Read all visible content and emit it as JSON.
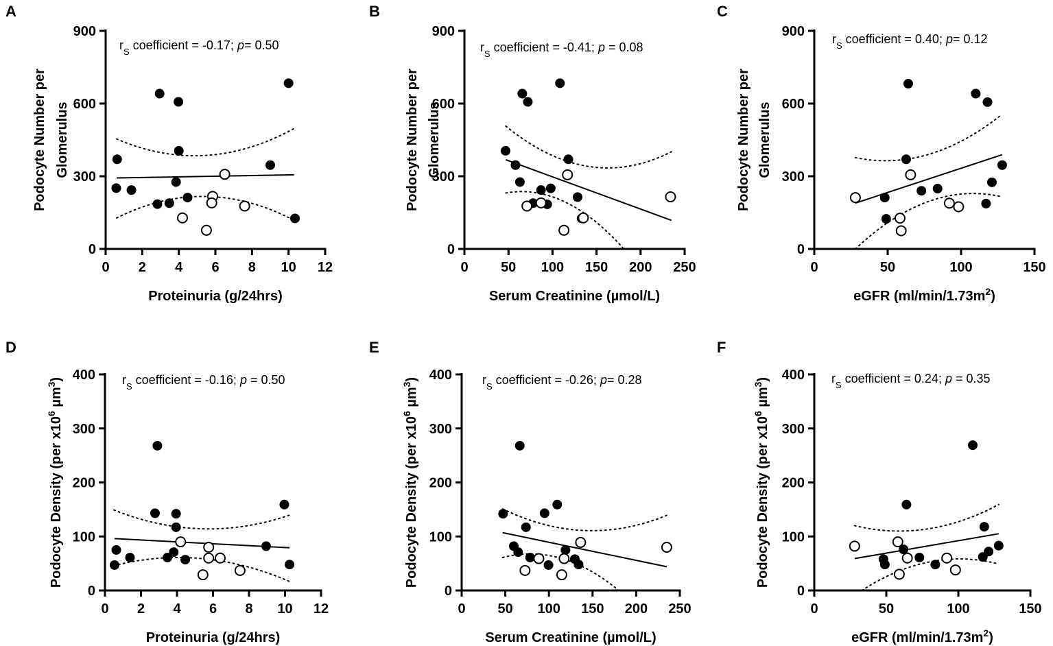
{
  "chart_data": [
    {
      "type": "scatter",
      "panel_label": "A",
      "xlabel": "Proteinuria (g/24hrs)",
      "ylabel_lines": [
        "Podocyte Number per",
        "Glomerulus"
      ],
      "xlim": [
        0,
        12
      ],
      "ylim": [
        0,
        900
      ],
      "xticks": [
        0,
        2,
        4,
        6,
        8,
        10,
        12
      ],
      "yticks": [
        0,
        300,
        600,
        900
      ],
      "annotation": {
        "r": "r",
        "sub": "S",
        "mid": " coefficient = -0.17; ",
        "p": "p",
        "end": "= 0.50"
      },
      "filled": [
        [
          0.63,
          370
        ],
        [
          0.58,
          251
        ],
        [
          1.41,
          243
        ],
        [
          2.95,
          641
        ],
        [
          3.98,
          607
        ],
        [
          4.0,
          405
        ],
        [
          3.85,
          276
        ],
        [
          2.83,
          185
        ],
        [
          3.48,
          189
        ],
        [
          4.48,
          212
        ],
        [
          9.0,
          346
        ],
        [
          10.0,
          684
        ],
        [
          10.35,
          126
        ]
      ],
      "open": [
        [
          6.51,
          308
        ],
        [
          5.85,
          217
        ],
        [
          5.8,
          190
        ],
        [
          7.6,
          177
        ],
        [
          4.2,
          128
        ],
        [
          5.51,
          77
        ]
      ],
      "fit": [
        [
          0.6,
          293
        ],
        [
          10.3,
          306
        ]
      ],
      "ci_upper": [
        [
          0.6,
          454
        ],
        [
          4.5,
          385
        ],
        [
          10.3,
          497
        ]
      ],
      "ci_lower": [
        [
          0.6,
          128
        ],
        [
          4.5,
          214
        ],
        [
          10.3,
          118
        ]
      ]
    },
    {
      "type": "scatter",
      "panel_label": "B",
      "xlabel": "Serum Creatinine (µmol/L)",
      "ylabel_lines": [
        "Podocyte Number per",
        "Glomerulus"
      ],
      "xlim": [
        0,
        250
      ],
      "ylim": [
        0,
        900
      ],
      "xticks": [
        0,
        50,
        100,
        150,
        200,
        250
      ],
      "yticks": [
        0,
        300,
        600,
        900
      ],
      "annotation": {
        "r": "r",
        "sub": "S",
        "mid": " coefficient = -0.41; ",
        "p": "p",
        "end": " = 0.08"
      },
      "filled": [
        [
          46.7,
          405
        ],
        [
          65.7,
          641
        ],
        [
          72,
          607
        ],
        [
          108.5,
          684
        ],
        [
          118,
          370
        ],
        [
          58,
          346
        ],
        [
          63,
          276
        ],
        [
          87,
          243
        ],
        [
          98,
          250
        ],
        [
          78,
          189
        ],
        [
          94,
          184
        ],
        [
          128.5,
          214
        ],
        [
          133,
          126
        ]
      ],
      "open": [
        [
          117,
          306
        ],
        [
          71,
          177
        ],
        [
          87,
          190
        ],
        [
          135,
          128
        ],
        [
          113,
          77
        ],
        [
          234,
          215
        ]
      ],
      "fit": [
        [
          47,
          368
        ],
        [
          235,
          118
        ]
      ],
      "ci_upper": [
        [
          47,
          507
        ],
        [
          120,
          358
        ],
        [
          235,
          401
        ]
      ],
      "ci_lower": [
        [
          47,
          231
        ],
        [
          87,
          228
        ],
        [
          181,
          0
        ]
      ]
    },
    {
      "type": "scatter",
      "panel_label": "C",
      "xlabel": "eGFR (ml/min/1.73m",
      "xlabel_sup": "2",
      "xlabel_end": ")",
      "ylabel_lines": [
        "Podocyte Number per",
        "Glomerulus"
      ],
      "xlim": [
        0,
        150
      ],
      "ylim": [
        0,
        900
      ],
      "xticks": [
        0,
        50,
        100,
        150
      ],
      "yticks": [
        0,
        300,
        600,
        900
      ],
      "annotation": {
        "r": "r",
        "sub": "S",
        "mid": " coefficient = 0.40; ",
        "p": "p",
        "end": "= 0.12"
      },
      "filled": [
        [
          64,
          682
        ],
        [
          110,
          641
        ],
        [
          118,
          606
        ],
        [
          62.6,
          370
        ],
        [
          128,
          346
        ],
        [
          121,
          275
        ],
        [
          73,
          240
        ],
        [
          84,
          249
        ],
        [
          48,
          212
        ],
        [
          117,
          187
        ],
        [
          49,
          124
        ]
      ],
      "open": [
        [
          28,
          212
        ],
        [
          65.6,
          306
        ],
        [
          92,
          189
        ],
        [
          98.3,
          174
        ],
        [
          58.4,
          127
        ],
        [
          59.2,
          75
        ]
      ],
      "fit": [
        [
          28,
          189
        ],
        [
          128,
          389
        ]
      ],
      "ci_upper": [
        [
          28,
          377
        ],
        [
          60,
          368
        ],
        [
          128,
          556
        ]
      ],
      "ci_lower": [
        [
          28,
          0
        ],
        [
          90,
          217
        ],
        [
          128,
          215
        ]
      ]
    },
    {
      "type": "scatter",
      "panel_label": "D",
      "xlabel": "Proteinuria (g/24hrs)",
      "ylabel": {
        "a": "Podocyte Density (per x10",
        "s1": "6",
        "b": " µm",
        "s2": "3",
        "c": ")"
      },
      "xlim": [
        0,
        12
      ],
      "ylim": [
        0,
        400
      ],
      "xticks": [
        0,
        2,
        4,
        6,
        8,
        10,
        12
      ],
      "yticks": [
        0,
        100,
        200,
        300,
        400
      ],
      "annotation": {
        "r": "r",
        "sub": "S",
        "mid": " coefficient = -0.16; ",
        "p": "p",
        "end": " = 0.50"
      },
      "filled": [
        [
          2.91,
          268
        ],
        [
          2.78,
          143
        ],
        [
          3.95,
          142
        ],
        [
          3.95,
          117
        ],
        [
          9.96,
          159
        ],
        [
          8.95,
          82
        ],
        [
          0.63,
          75
        ],
        [
          1.39,
          61
        ],
        [
          0.53,
          47
        ],
        [
          3.82,
          71
        ],
        [
          3.47,
          61
        ],
        [
          4.46,
          57
        ],
        [
          10.25,
          48
        ]
      ],
      "open": [
        [
          4.2,
          90
        ],
        [
          5.76,
          80
        ],
        [
          5.76,
          60
        ],
        [
          6.4,
          60
        ],
        [
          7.5,
          37
        ],
        [
          5.44,
          29
        ]
      ],
      "fit": [
        [
          0.53,
          96
        ],
        [
          10.25,
          79
        ]
      ],
      "ci_upper": [
        [
          0.5,
          149
        ],
        [
          4.5,
          116
        ],
        [
          10.3,
          140
        ]
      ],
      "ci_lower": [
        [
          0.5,
          46
        ],
        [
          4,
          61
        ],
        [
          10.3,
          16
        ]
      ]
    },
    {
      "type": "scatter",
      "panel_label": "E",
      "xlabel": "Serum Creatinine (µmol/L)",
      "ylabel": {
        "a": "Podocyte Density (per x10",
        "s1": "6",
        "b": " µm",
        "s2": "3",
        "c": ")"
      },
      "xlim": [
        0,
        250
      ],
      "ylim": [
        0,
        400
      ],
      "xticks": [
        0,
        50,
        100,
        150,
        200,
        250
      ],
      "yticks": [
        0,
        100,
        200,
        300,
        400
      ],
      "annotation": {
        "r": "r",
        "sub": "S",
        "mid": " coefficient = -0.26; ",
        "p": "p",
        "end": "= 0.28"
      },
      "filled": [
        [
          66.6,
          268
        ],
        [
          47.4,
          142
        ],
        [
          95,
          143
        ],
        [
          109.5,
          159
        ],
        [
          73.7,
          117
        ],
        [
          59.7,
          82
        ],
        [
          64.7,
          71
        ],
        [
          78.4,
          61
        ],
        [
          99.5,
          47
        ],
        [
          119,
          75
        ],
        [
          129.7,
          58
        ],
        [
          134,
          48
        ]
      ],
      "open": [
        [
          136.3,
          89
        ],
        [
          235,
          80
        ],
        [
          117.4,
          59
        ],
        [
          88.4,
          59
        ],
        [
          72.6,
          37
        ],
        [
          114.7,
          29
        ]
      ],
      "fit": [
        [
          47,
          107
        ],
        [
          235,
          44
        ]
      ],
      "ci_upper": [
        [
          47,
          151
        ],
        [
          125,
          113
        ],
        [
          235,
          139
        ]
      ],
      "ci_lower": [
        [
          47,
          61
        ],
        [
          95,
          66
        ],
        [
          180,
          0
        ]
      ]
    },
    {
      "type": "scatter",
      "panel_label": "F",
      "xlabel": "eGFR (ml/min/1.73m",
      "xlabel_sup": "2",
      "xlabel_end": ")",
      "ylabel": {
        "a": "Podocyte Density (per x10",
        "s1": "6",
        "b": " µm",
        "s2": "3",
        "c": ")"
      },
      "xlim": [
        0,
        150
      ],
      "ylim": [
        0,
        400
      ],
      "xticks": [
        0,
        50,
        100,
        150
      ],
      "yticks": [
        0,
        100,
        200,
        300,
        400
      ],
      "annotation": {
        "r": "r",
        "sub": "S",
        "mid": " coefficient = 0.24; ",
        "p": "p",
        "end": " = 0.35"
      },
      "filled": [
        [
          110,
          269
        ],
        [
          64,
          159
        ],
        [
          118,
          118
        ],
        [
          128,
          83
        ],
        [
          121,
          72
        ],
        [
          117,
          62
        ],
        [
          73,
          61
        ],
        [
          62,
          76
        ],
        [
          84,
          48
        ],
        [
          48,
          58
        ],
        [
          49,
          48
        ]
      ],
      "open": [
        [
          28,
          82
        ],
        [
          58,
          90
        ],
        [
          64.6,
          60
        ],
        [
          92,
          60
        ],
        [
          98,
          38
        ],
        [
          59,
          30
        ]
      ],
      "fit": [
        [
          28,
          59
        ],
        [
          128,
          105
        ]
      ],
      "ci_upper": [
        [
          28,
          120
        ],
        [
          60,
          110
        ],
        [
          128,
          159
        ]
      ],
      "ci_lower": [
        [
          33,
          0
        ],
        [
          95,
          58
        ],
        [
          128,
          49
        ]
      ]
    }
  ]
}
